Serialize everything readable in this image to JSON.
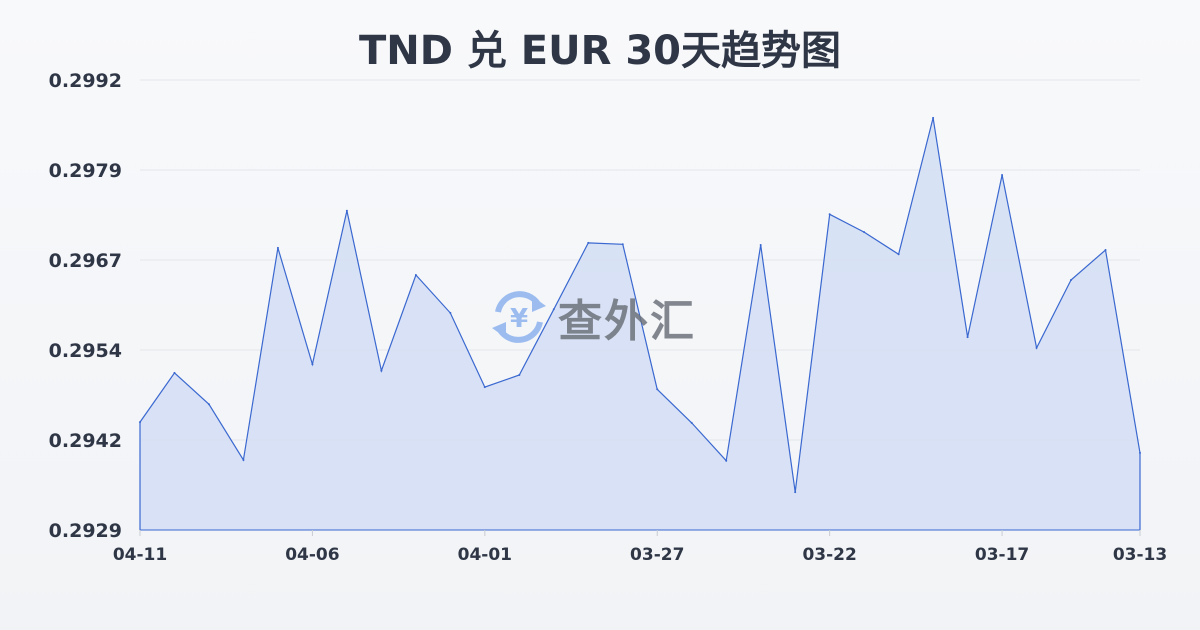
{
  "chart_data": {
    "type": "area",
    "title": "TND 兑 EUR 30天趋势图",
    "xlabel": "",
    "ylabel": "",
    "x": [
      "04-11",
      "04-10",
      "04-09",
      "04-08",
      "04-07",
      "04-06",
      "04-05",
      "04-04",
      "04-03",
      "04-02",
      "04-01",
      "03-31",
      "03-30",
      "03-29",
      "03-28",
      "03-27",
      "03-26",
      "03-25",
      "03-24",
      "03-23",
      "03-22",
      "03-21",
      "03-20",
      "03-19",
      "03-18",
      "03-17",
      "03-16",
      "03-15",
      "03-14",
      "03-13"
    ],
    "values": [
      0.29441,
      0.2951,
      0.29466,
      0.29388,
      0.29685,
      0.29522,
      0.29737,
      0.29513,
      0.29647,
      0.29594,
      0.2949,
      0.29507,
      0.29599,
      0.29692,
      0.2969,
      0.29487,
      0.2944,
      0.29387,
      0.29689,
      0.29343,
      0.29732,
      0.29707,
      0.29676,
      0.29867,
      0.2956,
      0.29787,
      0.29545,
      0.2964,
      0.29682,
      0.29398
    ],
    "x_tick_labels": [
      "04-11",
      "04-06",
      "04-01",
      "03-27",
      "03-22",
      "03-17",
      "03-13"
    ],
    "y_tick_labels": [
      "0.2992",
      "0.2979",
      "0.2967",
      "0.2954",
      "0.2942",
      "0.2929"
    ],
    "ylim": [
      0.2929,
      0.2992
    ],
    "grid": true,
    "line_color": "#3a68d0",
    "fill_color": "#d5dff4"
  },
  "watermark": {
    "text": "查外汇",
    "icon": "yen-exchange-icon",
    "icon_glyph": "¥"
  }
}
